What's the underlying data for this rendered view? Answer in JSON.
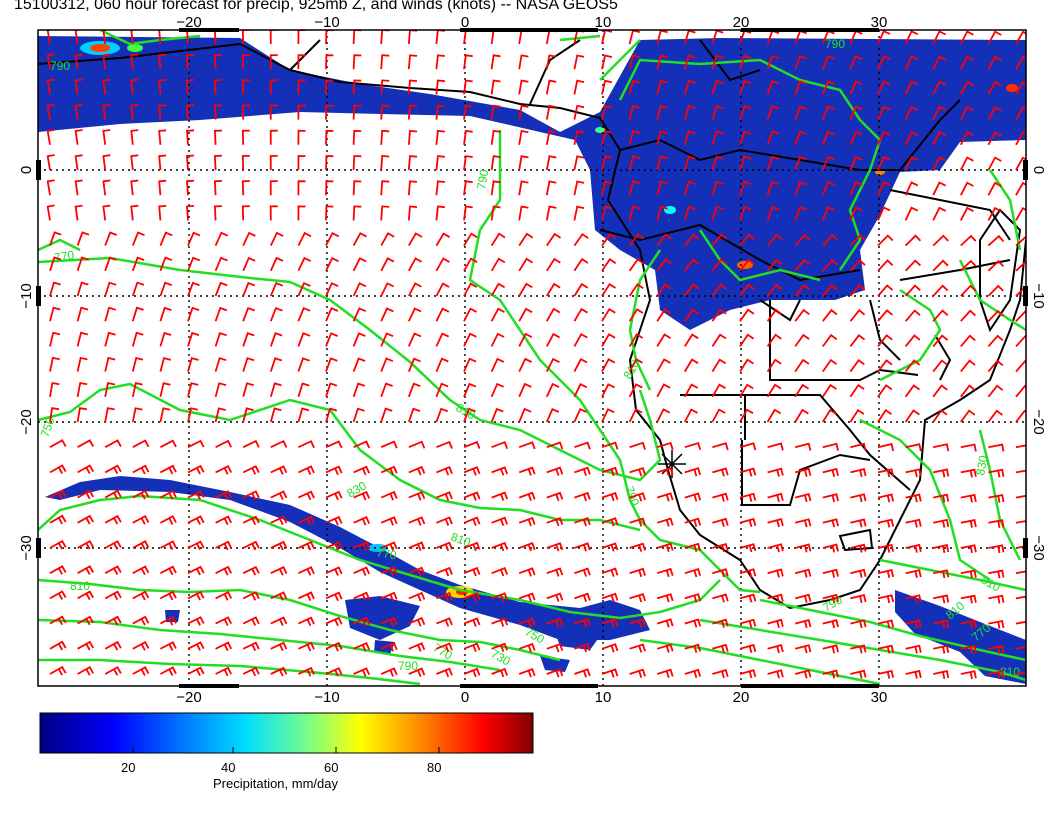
{
  "title": "15100312, 060 hour forecast for precip, 925mb Z, and winds (knots) -- NASA GEOS5",
  "map": {
    "lon_range": [
      -30,
      40
    ],
    "lat_range": [
      -40,
      10
    ],
    "lon_ticks": [
      -20,
      -10,
      0,
      10,
      20,
      30
    ],
    "lat_ticks": [
      0,
      -10,
      -20,
      -30
    ],
    "lon_tick_labels": [
      "−20",
      "−10",
      "0",
      "10",
      "20",
      "30"
    ],
    "lat_tick_labels": [
      "0",
      "−10",
      "−20",
      "−30"
    ],
    "gridlines": "dotted"
  },
  "contours": {
    "color": "#22dd22",
    "labels": [
      "790",
      "790",
      "790",
      "810",
      "810",
      "830",
      "770",
      "750",
      "810",
      "790",
      "770",
      "810",
      "790",
      "810",
      "810",
      "770",
      "730",
      "750",
      "770",
      "790",
      "810",
      "830"
    ]
  },
  "winds": {
    "color": "#ff0000",
    "units": "knots"
  },
  "colorbar": {
    "ticks": [
      "20",
      "40",
      "60",
      "80"
    ],
    "title": "Precipitation, mm/day",
    "range": [
      0,
      100
    ],
    "colors": [
      "#000080",
      "#0000ff",
      "#0080ff",
      "#00ffff",
      "#80ff80",
      "#ffff00",
      "#ff8000",
      "#ff0000",
      "#800000"
    ]
  }
}
